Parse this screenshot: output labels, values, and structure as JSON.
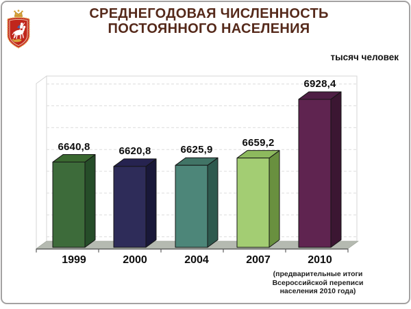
{
  "slide": {
    "title_line1": "СРЕДНЕГОДОВАЯ ЧИСЛЕННОСТЬ",
    "title_line2": "ПОСТОЯННОГО НАСЕЛЕНИЯ",
    "title_color": "#55291a",
    "emblem": "coat-of-arms-moscow-oblast"
  },
  "chart_data": {
    "type": "bar",
    "style": "3d-columns",
    "title": "Среднегодовая численность постоянного населения",
    "ylabel": "тысяч человек",
    "xlabel": "",
    "categories": [
      "1999",
      "2000",
      "2004",
      "2007",
      "2010"
    ],
    "values": [
      6640.8,
      6620.8,
      6625.9,
      6659.2,
      6928.4
    ],
    "value_labels": [
      "6640,8",
      "6620,8",
      "6625,9",
      "6659,2",
      "6928,4"
    ],
    "ylim": [
      6250,
      7030
    ],
    "gridline_step": 100,
    "grid": "dashed-horizontal",
    "legend": "none",
    "bar_colors": [
      {
        "front": "#3d6b3a",
        "side": "#264d29",
        "top": "#3a6830"
      },
      {
        "front": "#2e2c59",
        "side": "#191839",
        "top": "#262350"
      },
      {
        "front": "#4d8679",
        "side": "#2e594e",
        "top": "#417466"
      },
      {
        "front": "#a3cd73",
        "side": "#69903f",
        "top": "#8db95e"
      },
      {
        "front": "#5f2450",
        "side": "#3b1632",
        "top": "#4f1f45"
      }
    ],
    "floor_color": "#b5bab1",
    "note_lines": [
      "(предварительные итоги",
      "Всероссийской переписи",
      "населения 2010 года)"
    ],
    "note_applies_to": "2010"
  }
}
